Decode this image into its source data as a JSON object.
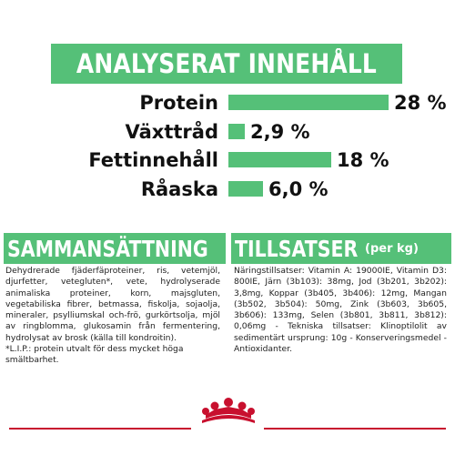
{
  "header": {
    "title": "ANALYSERAT INNEHÅLL"
  },
  "nutrients": [
    {
      "label": "Protein",
      "value_text": "28 %",
      "value": 28
    },
    {
      "label": "Växttråd",
      "value_text": "2,9 %",
      "value": 2.9
    },
    {
      "label": "Fettinnehåll",
      "value_text": "18 %",
      "value": 18
    },
    {
      "label": "Råaska",
      "value_text": "6,0 %",
      "value": 6.0
    }
  ],
  "composition": {
    "title": "SAMMANSÄTTNING",
    "text": "Dehydrerade fjäderfäproteiner, ris, vetemjöl, djurfetter, vetegluten*, vete, hydrolyserade animaliska proteiner, korn, majsgluten, vegetabiliska fibrer, betmassa, fiskolja, sojaolja, mineraler, psylliumskal och-frö, gurkörtsolja, mjöl av ringblomma, glukosamin från fermentering, hydrolysat av brosk (källa till kondroitin).",
    "note": "*L.I.P.: protein utvalt för dess mycket höga smältbarhet."
  },
  "additives": {
    "title": "TILLSATSER",
    "title_suffix": "(per kg)",
    "text": "Näringstillsatser: Vitamin A: 19000IE, Vitamin D3: 800IE, Järn (3b103): 38mg, Jod (3b201, 3b202): 3,8mg, Koppar (3b405, 3b406): 12mg, Mangan (3b502, 3b504): 50mg, Zink (3b603, 3b605, 3b606): 133mg, Selen (3b801, 3b811, 3b812): 0,06mg - Tekniska tillsatser: Klinoptilolit av sedimentärt ursprung: 10g - Konserveringsmedel - Antioxidanter."
  },
  "colors": {
    "accent": "#55c078",
    "brand_red": "#c8102e"
  },
  "icons": {
    "logo": "royal-canin-crown-logo"
  }
}
